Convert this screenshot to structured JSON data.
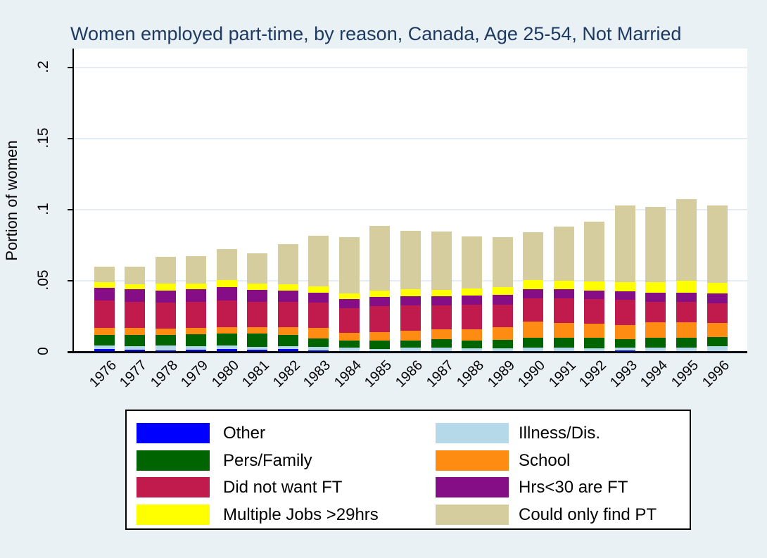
{
  "title": "Women employed part-time, by reason, Canada, Age 25-54, Not Married",
  "colors": {
    "background": "#eaf1f5",
    "plot_background": "#ffffff",
    "title_text": "#1e3a63",
    "axis_text": "#000000",
    "gridline": "#e2ecf2"
  },
  "axes": {
    "ylabel": "Portion of women",
    "ytick_labels": [
      "0",
      ".05",
      ".1",
      ".15",
      ".2"
    ],
    "ytick_values": [
      0,
      0.05,
      0.1,
      0.15,
      0.2
    ],
    "xtick_labels": [
      "1976",
      "1977",
      "1978",
      "1979",
      "1980",
      "1981",
      "1982",
      "1983",
      "1984",
      "1985",
      "1986",
      "1987",
      "1988",
      "1989",
      "1990",
      "1991",
      "1992",
      "1993",
      "1994",
      "1995",
      "1996"
    ]
  },
  "chart_data": {
    "type": "bar",
    "stacked": true,
    "title": "Women employed part-time, by reason, Canada, Age 25-54, Not Married",
    "xlabel": "",
    "ylabel": "Portion of women",
    "ylim": [
      0,
      0.2
    ],
    "yticks": [
      0,
      0.05,
      0.1,
      0.15,
      0.2
    ],
    "grid": true,
    "legend_position": "bottom",
    "categories": [
      1976,
      1977,
      1978,
      1979,
      1980,
      1981,
      1982,
      1983,
      1984,
      1985,
      1986,
      1987,
      1988,
      1989,
      1990,
      1991,
      1992,
      1993,
      1994,
      1995,
      1996
    ],
    "series": [
      {
        "name": "Other",
        "color": "#0000ff",
        "values": [
          0.002,
          0.0015,
          0.001,
          0.0015,
          0.002,
          0.0015,
          0.002,
          0.001,
          0.0005,
          0,
          0,
          0.0005,
          0.0005,
          0,
          0,
          0,
          0,
          0.001,
          0,
          0,
          0
        ]
      },
      {
        "name": "Illness/Dis.",
        "color": "#b5d9e8",
        "values": [
          0.0025,
          0.0025,
          0.0035,
          0.0025,
          0.0025,
          0.002,
          0.002,
          0.0025,
          0.0025,
          0.002,
          0.003,
          0.0025,
          0.002,
          0.0025,
          0.003,
          0.003,
          0.0025,
          0.002,
          0.003,
          0.003,
          0.004
        ]
      },
      {
        "name": "Pers/Family",
        "color": "#006400",
        "values": [
          0.0075,
          0.008,
          0.0075,
          0.0085,
          0.0085,
          0.0095,
          0.008,
          0.006,
          0.005,
          0.006,
          0.005,
          0.006,
          0.0055,
          0.006,
          0.007,
          0.007,
          0.0075,
          0.006,
          0.007,
          0.007,
          0.0065
        ]
      },
      {
        "name": "School",
        "color": "#ff8c12",
        "values": [
          0.005,
          0.005,
          0.0045,
          0.0045,
          0.0045,
          0.0045,
          0.0055,
          0.0075,
          0.0055,
          0.006,
          0.007,
          0.007,
          0.008,
          0.009,
          0.0115,
          0.0105,
          0.01,
          0.01,
          0.011,
          0.011,
          0.01
        ]
      },
      {
        "name": "Did not want FT",
        "color": "#c11a4c",
        "values": [
          0.019,
          0.018,
          0.018,
          0.018,
          0.0185,
          0.0175,
          0.0175,
          0.0175,
          0.017,
          0.018,
          0.0175,
          0.0165,
          0.017,
          0.0155,
          0.016,
          0.017,
          0.017,
          0.0175,
          0.014,
          0.014,
          0.0135
        ]
      },
      {
        "name": "Hrs<30 are FT",
        "color": "#850d85",
        "values": [
          0.009,
          0.009,
          0.0085,
          0.009,
          0.0095,
          0.0085,
          0.008,
          0.007,
          0.0065,
          0.0065,
          0.0065,
          0.0065,
          0.0065,
          0.007,
          0.0065,
          0.0065,
          0.006,
          0.006,
          0.0065,
          0.0065,
          0.007
        ]
      },
      {
        "name": "Multiple Jobs >29hrs",
        "color": "#ffff00",
        "values": [
          0.004,
          0.0035,
          0.005,
          0.004,
          0.005,
          0.0045,
          0.0045,
          0.0045,
          0.004,
          0.0045,
          0.005,
          0.0045,
          0.005,
          0.0055,
          0.0065,
          0.006,
          0.0065,
          0.0065,
          0.0075,
          0.0085,
          0.0075
        ]
      },
      {
        "name": "Could only find PT",
        "color": "#d5cd9e",
        "values": [
          0.011,
          0.0125,
          0.019,
          0.0195,
          0.022,
          0.0215,
          0.028,
          0.0355,
          0.0395,
          0.0455,
          0.041,
          0.041,
          0.0365,
          0.035,
          0.0335,
          0.038,
          0.042,
          0.054,
          0.053,
          0.0575,
          0.0545
        ]
      }
    ]
  },
  "legend": {
    "order": [
      "Other",
      "Illness/Dis.",
      "Pers/Family",
      "School",
      "Did not want FT",
      "Hrs<30 are FT",
      "Multiple Jobs >29hrs",
      "Could only find PT"
    ]
  }
}
